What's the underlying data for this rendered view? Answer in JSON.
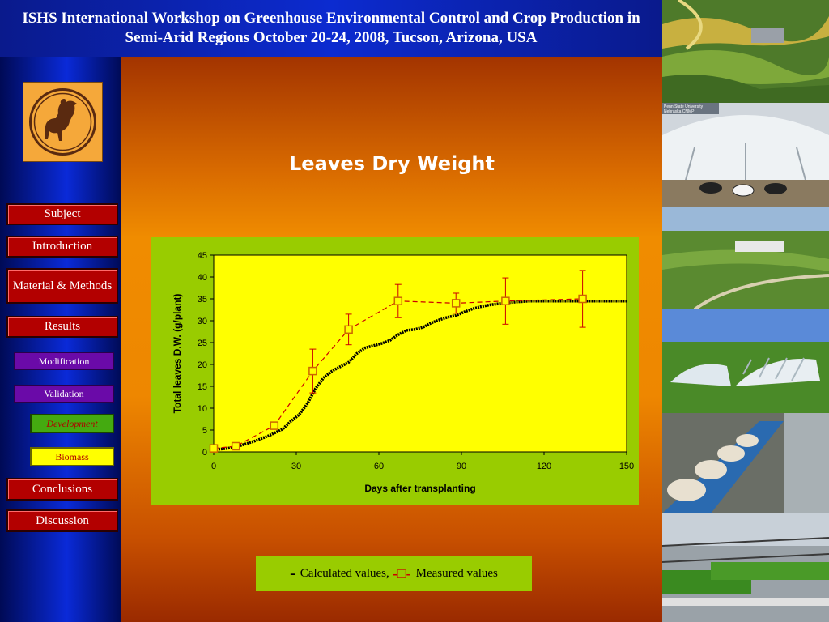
{
  "header": {
    "title": "ISHS International Workshop on Greenhouse Environmental Control and Crop Production in Semi-Arid Regions October 20-24, 2008, Tucson, Arizona, USA"
  },
  "nav": {
    "subject": "Subject",
    "introduction": "Introduction",
    "material_methods": "Material & Methods",
    "results": "Results",
    "modification": "Modification",
    "validation": "Validation",
    "development": "Development",
    "biomass": "Biomass",
    "conclusions": "Conclusions",
    "discussion": "Discussion"
  },
  "photo_panel": {
    "caption_line1": "Penn State University",
    "caption_line2": "Nebraska CNMP"
  },
  "legend": {
    "calculated_label": "Calculated values,",
    "measured_label": "Measured values",
    "measured_symbol": "-□-"
  },
  "colors": {
    "plot_bg": "#ffff00",
    "chart_bg": "#99cc00",
    "measured": "#cc0000",
    "marker_fill": "#ffff00",
    "calculated": "#000000"
  },
  "chart_data": {
    "type": "line",
    "title": "Leaves Dry Weight",
    "xlabel": "Days after transplanting",
    "ylabel": "Total leaves D.W. (g/plant)",
    "xlim": [
      0,
      150
    ],
    "ylim": [
      0,
      45
    ],
    "xticks": [
      0,
      30,
      60,
      90,
      120,
      150
    ],
    "yticks": [
      0,
      5,
      10,
      15,
      20,
      25,
      30,
      35,
      40,
      45
    ],
    "grid": false,
    "series": [
      {
        "name": "Calculated values",
        "style": "solid",
        "x": [
          0,
          5,
          10,
          15,
          20,
          25,
          28,
          31,
          34,
          37,
          40,
          43,
          46,
          49,
          52,
          55,
          58,
          61,
          64,
          67,
          70,
          73,
          76,
          79,
          82,
          85,
          88,
          91,
          94,
          97,
          100,
          105,
          110,
          115,
          120,
          125,
          130,
          135,
          140,
          145,
          150
        ],
        "y": [
          0.5,
          0.8,
          1.5,
          2.5,
          3.7,
          5.2,
          7.0,
          8.5,
          11.0,
          14.5,
          17.0,
          18.5,
          19.5,
          20.5,
          22.5,
          23.8,
          24.3,
          24.8,
          25.5,
          26.8,
          27.8,
          28.0,
          28.5,
          29.5,
          30.2,
          30.8,
          31.2,
          32.0,
          32.7,
          33.2,
          33.6,
          34.0,
          34.3,
          34.5,
          34.5,
          34.5,
          34.5,
          34.5,
          34.5,
          34.5,
          34.5
        ]
      },
      {
        "name": "Measured values",
        "style": "dashed",
        "marker": "square",
        "x": [
          0,
          8,
          22,
          36,
          49,
          67,
          88,
          106,
          134
        ],
        "y": [
          0.8,
          1.3,
          6.0,
          18.5,
          28.0,
          34.5,
          34.0,
          34.5,
          35.0
        ],
        "error": [
          0,
          0,
          0,
          5.0,
          3.5,
          3.8,
          2.3,
          5.3,
          6.5
        ]
      }
    ]
  }
}
